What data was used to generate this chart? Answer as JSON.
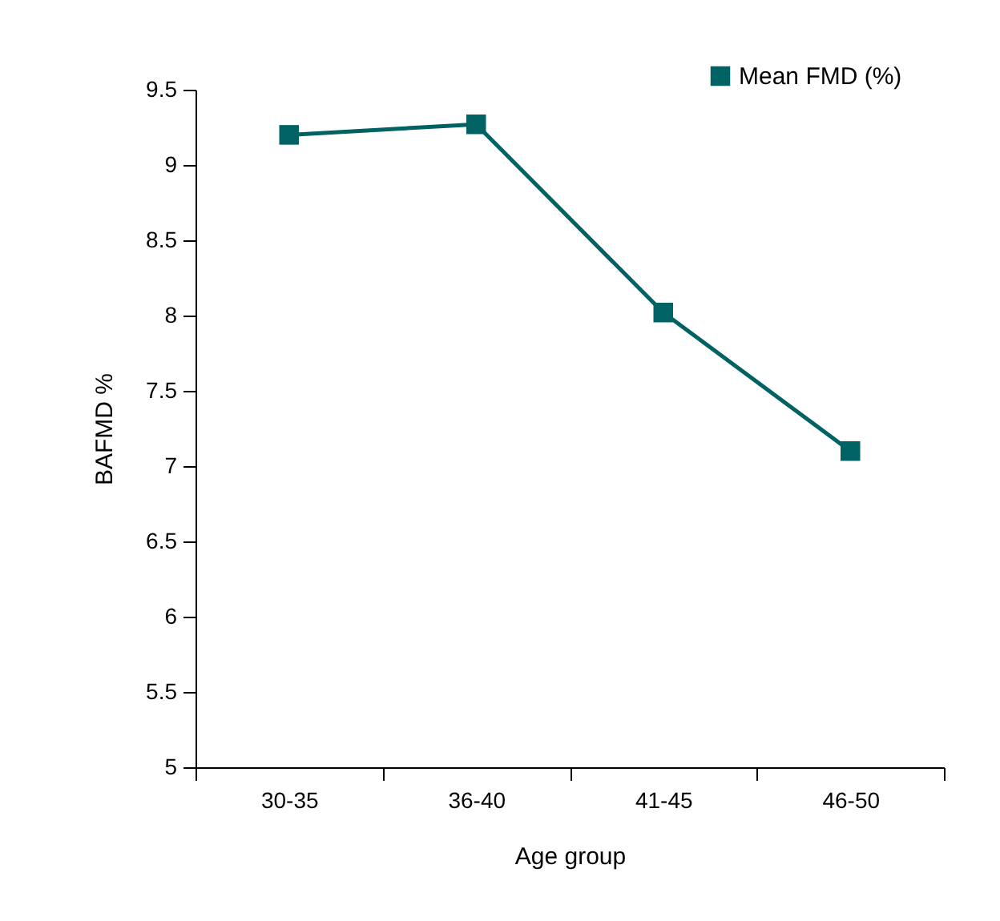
{
  "chart_data": {
    "type": "line",
    "xlabel": "Age group",
    "ylabel": "BAFMD %",
    "categories": [
      "30-35",
      "36-40",
      "41-45",
      "46-50"
    ],
    "series": [
      {
        "name": "Mean FMD (%)",
        "color": "#006262",
        "values": [
          9.2,
          9.27,
          8.02,
          7.1
        ]
      }
    ],
    "ylim": [
      5,
      9.5
    ],
    "yticks": [
      5,
      5.5,
      6,
      6.5,
      7,
      7.5,
      8,
      8.5,
      9,
      9.5
    ],
    "marker": "square",
    "line_style": "solid",
    "grid": false,
    "legend": "top right"
  }
}
